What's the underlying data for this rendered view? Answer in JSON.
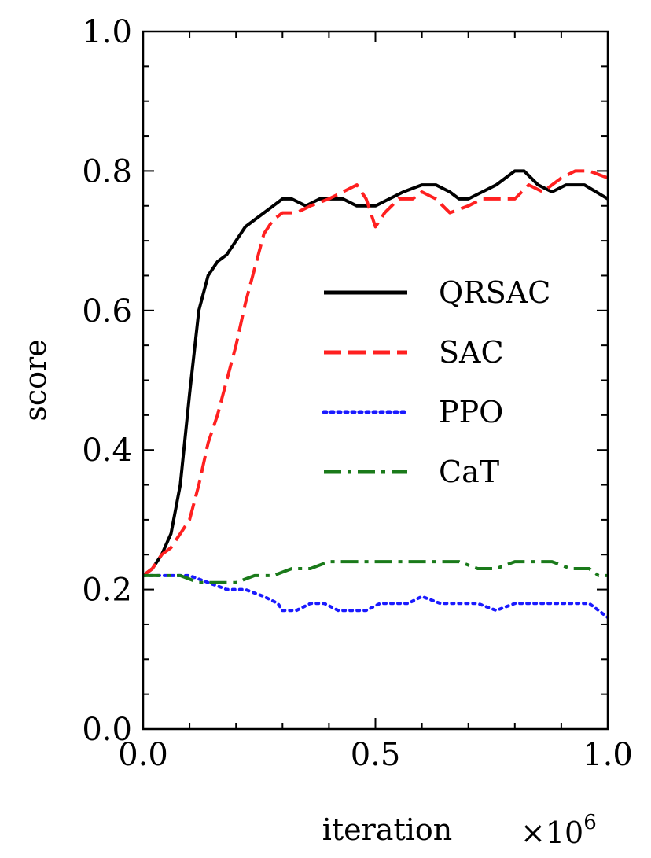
{
  "chart_data": {
    "type": "line",
    "xlabel": "iteration",
    "ylabel": "score",
    "x_multiplier_label": "×10",
    "x_multiplier_exponent": "6",
    "xlim": [
      0.0,
      1.0
    ],
    "ylim": [
      0.0,
      1.0
    ],
    "xticks": [
      0.0,
      0.5,
      1.0
    ],
    "xtick_labels": [
      "0.0",
      "0.5",
      "1.0"
    ],
    "yticks": [
      0.0,
      0.2,
      0.4,
      0.6,
      0.8,
      1.0
    ],
    "ytick_labels": [
      "0.0",
      "0.2",
      "0.4",
      "0.6",
      "0.8",
      "1.0"
    ],
    "grid": false,
    "legend_position": "center-right",
    "series": [
      {
        "name": "QRSAC",
        "color": "#000000",
        "style": "solid",
        "x": [
          0.0,
          0.02,
          0.04,
          0.06,
          0.08,
          0.1,
          0.12,
          0.14,
          0.16,
          0.18,
          0.2,
          0.22,
          0.24,
          0.26,
          0.28,
          0.3,
          0.32,
          0.35,
          0.38,
          0.4,
          0.43,
          0.46,
          0.5,
          0.53,
          0.56,
          0.6,
          0.63,
          0.66,
          0.68,
          0.7,
          0.73,
          0.76,
          0.8,
          0.82,
          0.85,
          0.88,
          0.91,
          0.95,
          1.0
        ],
        "y": [
          0.22,
          0.23,
          0.25,
          0.28,
          0.35,
          0.48,
          0.6,
          0.65,
          0.67,
          0.68,
          0.7,
          0.72,
          0.73,
          0.74,
          0.75,
          0.76,
          0.76,
          0.75,
          0.76,
          0.76,
          0.76,
          0.75,
          0.75,
          0.76,
          0.77,
          0.78,
          0.78,
          0.77,
          0.76,
          0.76,
          0.77,
          0.78,
          0.8,
          0.8,
          0.78,
          0.77,
          0.78,
          0.78,
          0.76
        ]
      },
      {
        "name": "SAC",
        "color": "#ff2020",
        "style": "dashed",
        "x": [
          0.0,
          0.02,
          0.04,
          0.06,
          0.08,
          0.1,
          0.12,
          0.14,
          0.16,
          0.18,
          0.2,
          0.22,
          0.24,
          0.26,
          0.28,
          0.3,
          0.33,
          0.36,
          0.4,
          0.43,
          0.46,
          0.48,
          0.5,
          0.52,
          0.55,
          0.58,
          0.6,
          0.63,
          0.66,
          0.7,
          0.73,
          0.76,
          0.8,
          0.83,
          0.86,
          0.9,
          0.93,
          0.96,
          1.0
        ],
        "y": [
          0.22,
          0.23,
          0.25,
          0.26,
          0.28,
          0.3,
          0.35,
          0.41,
          0.45,
          0.5,
          0.55,
          0.61,
          0.66,
          0.71,
          0.73,
          0.74,
          0.74,
          0.75,
          0.76,
          0.77,
          0.78,
          0.76,
          0.72,
          0.74,
          0.76,
          0.76,
          0.77,
          0.76,
          0.74,
          0.75,
          0.76,
          0.76,
          0.76,
          0.78,
          0.77,
          0.79,
          0.8,
          0.8,
          0.79
        ]
      },
      {
        "name": "PPO",
        "color": "#1a1aff",
        "style": "dotted",
        "x": [
          0.0,
          0.03,
          0.06,
          0.1,
          0.14,
          0.18,
          0.22,
          0.26,
          0.29,
          0.3,
          0.33,
          0.36,
          0.39,
          0.42,
          0.45,
          0.48,
          0.51,
          0.54,
          0.57,
          0.6,
          0.64,
          0.68,
          0.72,
          0.76,
          0.8,
          0.84,
          0.88,
          0.92,
          0.96,
          0.98,
          1.0
        ],
        "y": [
          0.22,
          0.22,
          0.22,
          0.22,
          0.21,
          0.2,
          0.2,
          0.19,
          0.18,
          0.17,
          0.17,
          0.18,
          0.18,
          0.17,
          0.17,
          0.17,
          0.18,
          0.18,
          0.18,
          0.19,
          0.18,
          0.18,
          0.18,
          0.17,
          0.18,
          0.18,
          0.18,
          0.18,
          0.18,
          0.17,
          0.16
        ]
      },
      {
        "name": "CaT",
        "color": "#1a7a1a",
        "style": "dashdot",
        "x": [
          0.0,
          0.04,
          0.08,
          0.12,
          0.16,
          0.2,
          0.24,
          0.28,
          0.32,
          0.36,
          0.4,
          0.44,
          0.48,
          0.52,
          0.56,
          0.6,
          0.64,
          0.68,
          0.72,
          0.76,
          0.8,
          0.84,
          0.88,
          0.92,
          0.96,
          0.98,
          1.0
        ],
        "y": [
          0.22,
          0.22,
          0.22,
          0.21,
          0.21,
          0.21,
          0.22,
          0.22,
          0.23,
          0.23,
          0.24,
          0.24,
          0.24,
          0.24,
          0.24,
          0.24,
          0.24,
          0.24,
          0.23,
          0.23,
          0.24,
          0.24,
          0.24,
          0.23,
          0.23,
          0.22,
          0.22
        ]
      }
    ]
  }
}
